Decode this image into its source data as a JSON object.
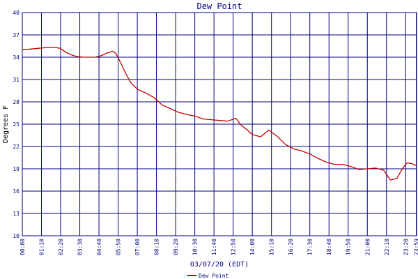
{
  "chart_data": {
    "type": "line",
    "title": "Dew Point",
    "xlabel": "03/07/20 (EDT)",
    "ylabel": "Degrees F",
    "ylim": [
      10,
      40
    ],
    "yticks": [
      10,
      13,
      16,
      19,
      22,
      25,
      28,
      31,
      34,
      37,
      40
    ],
    "xlim_hours": [
      0,
      24
    ],
    "x_tick_labels": [
      "00:00",
      "01:10",
      "02:20",
      "03:30",
      "04:40",
      "05:50",
      "07:00",
      "08:10",
      "09:20",
      "10:30",
      "11:40",
      "12:50",
      "14:00",
      "15:10",
      "16:20",
      "17:30",
      "18:40",
      "19:50",
      "21:00",
      "22:10",
      "23:20",
      "23:59"
    ],
    "grid": true,
    "legend": {
      "position": "bottom-center"
    },
    "series": [
      {
        "name": "Dew Point",
        "color": "#c00000",
        "x_hours": [
          0,
          0.5,
          1.0,
          1.5,
          2.0,
          2.3,
          2.7,
          3.0,
          3.3,
          3.7,
          4.0,
          4.4,
          4.8,
          5.2,
          5.5,
          5.7,
          6.0,
          6.3,
          6.6,
          7.0,
          7.5,
          8.0,
          8.5,
          9.0,
          9.5,
          10.0,
          10.5,
          11.0,
          11.5,
          12.0,
          12.5,
          13.0,
          13.3,
          13.7,
          14.0,
          14.5,
          15.0,
          15.5,
          16.0,
          16.5,
          17.0,
          17.5,
          18.0,
          18.5,
          19.0,
          19.5,
          20.0,
          20.5,
          21.0,
          21.5,
          22.0,
          22.4,
          22.8,
          23.1,
          23.4,
          23.7,
          24.0
        ],
        "values": [
          35.0,
          35.1,
          35.2,
          35.3,
          35.3,
          35.2,
          34.6,
          34.3,
          34.1,
          34.0,
          34.0,
          34.0,
          34.2,
          34.6,
          34.8,
          34.5,
          33.2,
          31.8,
          30.6,
          29.7,
          29.2,
          28.6,
          27.6,
          27.1,
          26.6,
          26.3,
          26.1,
          25.7,
          25.6,
          25.5,
          25.4,
          25.8,
          24.9,
          24.2,
          23.6,
          23.3,
          24.2,
          23.4,
          22.3,
          21.7,
          21.4,
          21.0,
          20.4,
          19.9,
          19.6,
          19.6,
          19.3,
          18.9,
          19.0,
          19.1,
          18.8,
          17.5,
          17.7,
          18.9,
          19.8,
          19.7,
          19.4
        ]
      }
    ]
  }
}
